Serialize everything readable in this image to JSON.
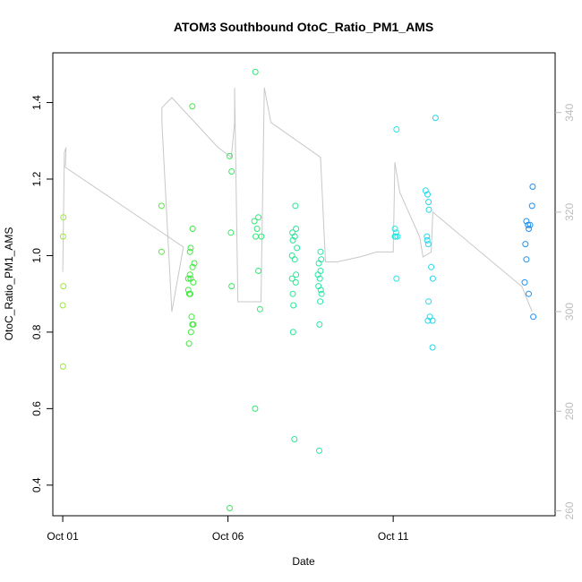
{
  "chart_data": {
    "type": "scatter",
    "title": "ATOM3 Southbound OtoC_Ratio_PM1_AMS",
    "xlabel": "Date",
    "ylabel": "OtoC_Ratio_PM1_AMS",
    "x_ticks": [
      "Oct 01",
      "Oct 06",
      "Oct 11"
    ],
    "x_tick_day": [
      1,
      6,
      11
    ],
    "xlim": [
      0.7,
      15.9
    ],
    "ylim": [
      0.32,
      1.53
    ],
    "y_ticks": [
      0.4,
      0.6,
      0.8,
      1.0,
      1.2,
      1.4
    ],
    "y_tick_labels": [
      "0.4",
      "0.6",
      "0.8",
      "1.0",
      "1.2",
      "1.4"
    ],
    "y2_ticks": [
      260,
      280,
      300,
      320,
      340
    ],
    "y2_tick_labels": [
      "260",
      "280",
      "300",
      "320",
      "340"
    ],
    "y2lim": [
      259,
      352
    ],
    "grid": false,
    "color_scale": "day-of-month, yellow-green to blue",
    "points": [
      {
        "x": 1.02,
        "y": 1.1
      },
      {
        "x": 1.01,
        "y": 1.05
      },
      {
        "x": 1.02,
        "y": 0.92
      },
      {
        "x": 1.0,
        "y": 0.87
      },
      {
        "x": 1.01,
        "y": 0.71
      },
      {
        "x": 3.99,
        "y": 1.13
      },
      {
        "x": 3.99,
        "y": 1.01
      },
      {
        "x": 4.92,
        "y": 1.39
      },
      {
        "x": 4.93,
        "y": 1.07
      },
      {
        "x": 4.87,
        "y": 1.02
      },
      {
        "x": 4.85,
        "y": 1.01
      },
      {
        "x": 4.98,
        "y": 0.98
      },
      {
        "x": 4.93,
        "y": 0.97
      },
      {
        "x": 4.85,
        "y": 0.95
      },
      {
        "x": 4.8,
        "y": 0.94
      },
      {
        "x": 4.87,
        "y": 0.94
      },
      {
        "x": 4.95,
        "y": 0.93
      },
      {
        "x": 4.8,
        "y": 0.91
      },
      {
        "x": 4.86,
        "y": 0.9
      },
      {
        "x": 4.83,
        "y": 0.9
      },
      {
        "x": 4.9,
        "y": 0.84
      },
      {
        "x": 4.95,
        "y": 0.82
      },
      {
        "x": 4.92,
        "y": 0.82
      },
      {
        "x": 4.88,
        "y": 0.8
      },
      {
        "x": 4.82,
        "y": 0.77
      },
      {
        "x": 6.05,
        "y": 1.26
      },
      {
        "x": 6.11,
        "y": 1.22
      },
      {
        "x": 6.09,
        "y": 1.06
      },
      {
        "x": 6.11,
        "y": 0.92
      },
      {
        "x": 6.05,
        "y": 0.34
      },
      {
        "x": 6.83,
        "y": 1.48
      },
      {
        "x": 6.92,
        "y": 1.1
      },
      {
        "x": 6.8,
        "y": 1.09
      },
      {
        "x": 6.88,
        "y": 1.07
      },
      {
        "x": 6.84,
        "y": 1.05
      },
      {
        "x": 7.01,
        "y": 1.05
      },
      {
        "x": 6.92,
        "y": 0.96
      },
      {
        "x": 6.97,
        "y": 0.86
      },
      {
        "x": 6.82,
        "y": 0.6
      },
      {
        "x": 8.04,
        "y": 1.13
      },
      {
        "x": 8.06,
        "y": 1.07
      },
      {
        "x": 7.95,
        "y": 1.06
      },
      {
        "x": 8.02,
        "y": 1.05
      },
      {
        "x": 7.96,
        "y": 1.04
      },
      {
        "x": 8.09,
        "y": 1.02
      },
      {
        "x": 7.94,
        "y": 1.0
      },
      {
        "x": 8.02,
        "y": 0.99
      },
      {
        "x": 8.06,
        "y": 0.95
      },
      {
        "x": 7.94,
        "y": 0.94
      },
      {
        "x": 8.05,
        "y": 0.93
      },
      {
        "x": 7.96,
        "y": 0.9
      },
      {
        "x": 7.98,
        "y": 0.87
      },
      {
        "x": 7.97,
        "y": 0.8
      },
      {
        "x": 8.01,
        "y": 0.52
      },
      {
        "x": 8.8,
        "y": 1.01
      },
      {
        "x": 8.82,
        "y": 0.99
      },
      {
        "x": 8.75,
        "y": 0.98
      },
      {
        "x": 8.8,
        "y": 0.96
      },
      {
        "x": 8.72,
        "y": 0.95
      },
      {
        "x": 8.78,
        "y": 0.94
      },
      {
        "x": 8.74,
        "y": 0.92
      },
      {
        "x": 8.81,
        "y": 0.91
      },
      {
        "x": 8.83,
        "y": 0.9
      },
      {
        "x": 8.79,
        "y": 0.88
      },
      {
        "x": 8.77,
        "y": 0.82
      },
      {
        "x": 8.76,
        "y": 0.49
      },
      {
        "x": 11.1,
        "y": 1.33
      },
      {
        "x": 11.05,
        "y": 1.07
      },
      {
        "x": 11.09,
        "y": 1.06
      },
      {
        "x": 11.05,
        "y": 1.05
      },
      {
        "x": 11.13,
        "y": 1.05
      },
      {
        "x": 11.07,
        "y": 1.05
      },
      {
        "x": 11.1,
        "y": 0.94
      },
      {
        "x": 12.28,
        "y": 1.36
      },
      {
        "x": 11.98,
        "y": 1.17
      },
      {
        "x": 12.04,
        "y": 1.16
      },
      {
        "x": 12.07,
        "y": 1.14
      },
      {
        "x": 12.08,
        "y": 1.12
      },
      {
        "x": 12.02,
        "y": 1.05
      },
      {
        "x": 12.03,
        "y": 1.04
      },
      {
        "x": 12.06,
        "y": 1.03
      },
      {
        "x": 12.15,
        "y": 0.97
      },
      {
        "x": 12.2,
        "y": 0.94
      },
      {
        "x": 12.07,
        "y": 0.88
      },
      {
        "x": 12.11,
        "y": 0.84
      },
      {
        "x": 12.05,
        "y": 0.83
      },
      {
        "x": 12.19,
        "y": 0.83
      },
      {
        "x": 12.19,
        "y": 0.76
      },
      {
        "x": 15.22,
        "y": 1.18
      },
      {
        "x": 15.2,
        "y": 1.13
      },
      {
        "x": 15.03,
        "y": 1.09
      },
      {
        "x": 15.08,
        "y": 1.08
      },
      {
        "x": 15.14,
        "y": 1.08
      },
      {
        "x": 15.1,
        "y": 1.07
      },
      {
        "x": 15.0,
        "y": 1.03
      },
      {
        "x": 15.03,
        "y": 0.99
      },
      {
        "x": 14.98,
        "y": 0.93
      },
      {
        "x": 15.1,
        "y": 0.9
      },
      {
        "x": 15.24,
        "y": 0.84
      }
    ],
    "line_series": [
      {
        "x": 1.0,
        "y2": 308
      },
      {
        "x": 1.05,
        "y2": 332
      },
      {
        "x": 1.1,
        "y2": 333
      },
      {
        "x": 1.08,
        "y2": 329
      },
      {
        "x": 4.65,
        "y2": 313
      },
      {
        "x": 4.3,
        "y2": 300
      },
      {
        "x": 4.0,
        "y2": 338
      },
      {
        "x": 4.0,
        "y2": 341
      },
      {
        "x": 4.3,
        "y2": 343
      },
      {
        "x": 5.7,
        "y2": 333
      },
      {
        "x": 6.1,
        "y2": 331
      },
      {
        "x": 6.2,
        "y2": 338
      },
      {
        "x": 6.2,
        "y2": 345
      },
      {
        "x": 6.3,
        "y2": 302
      },
      {
        "x": 6.5,
        "y2": 302
      },
      {
        "x": 7.0,
        "y2": 302
      },
      {
        "x": 7.1,
        "y2": 345
      },
      {
        "x": 7.3,
        "y2": 338
      },
      {
        "x": 8.8,
        "y2": 331
      },
      {
        "x": 8.95,
        "y2": 310
      },
      {
        "x": 9.3,
        "y2": 310
      },
      {
        "x": 10.0,
        "y2": 311
      },
      {
        "x": 10.5,
        "y2": 312
      },
      {
        "x": 11.0,
        "y2": 312
      },
      {
        "x": 11.05,
        "y2": 330
      },
      {
        "x": 11.2,
        "y2": 324
      },
      {
        "x": 11.8,
        "y2": 315
      },
      {
        "x": 11.9,
        "y2": 311
      },
      {
        "x": 12.15,
        "y2": 312
      },
      {
        "x": 12.2,
        "y2": 320
      },
      {
        "x": 14.9,
        "y2": 305
      },
      {
        "x": 15.2,
        "y2": 300
      }
    ]
  }
}
